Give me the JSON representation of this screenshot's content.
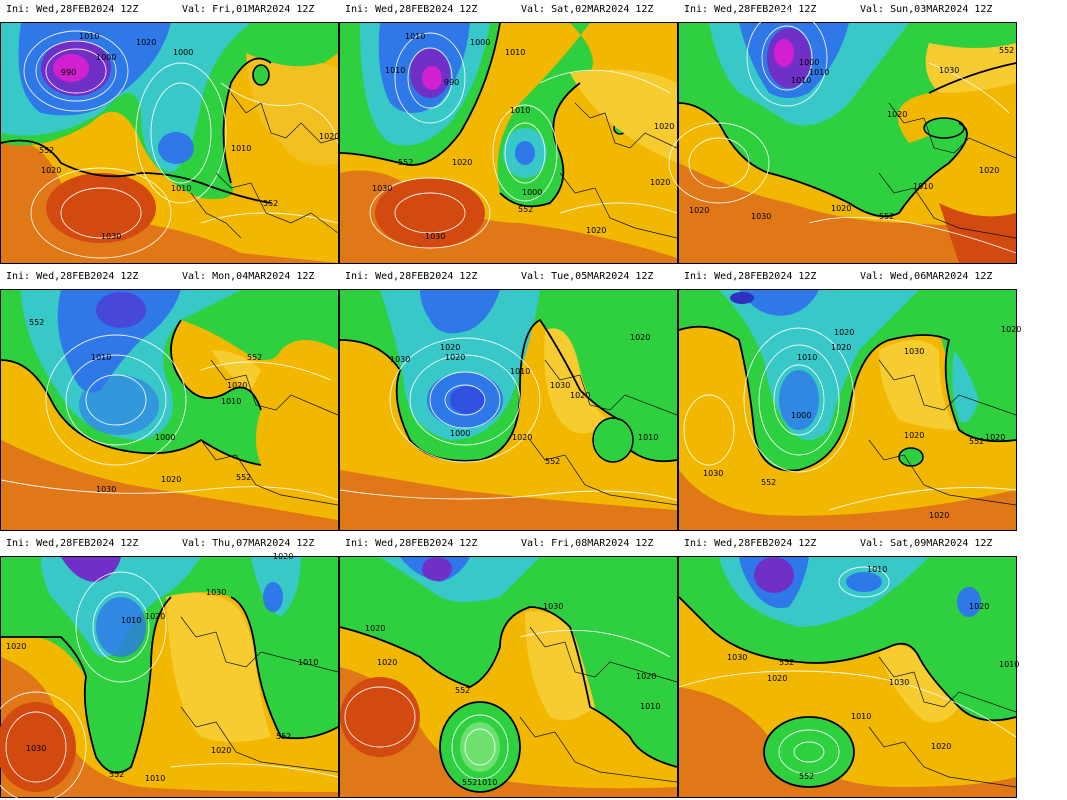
{
  "panels": [
    {
      "init": "Ini: Wed,28FEB2024 12Z",
      "valid": "Val: Fri,01MAR2024 12Z",
      "labels": [
        "1010",
        "1020",
        "1000",
        "1000",
        "990",
        "552",
        "1020",
        "1010",
        "1010",
        "1020",
        "1030",
        "552"
      ]
    },
    {
      "init": "Ini: Wed,28FEB2024 12Z",
      "valid": "Val: Sat,02MAR2024 12Z",
      "labels": [
        "1010",
        "990",
        "1000",
        "1010",
        "1010",
        "1010",
        "552",
        "1020",
        "1030",
        "1030",
        "1000",
        "552",
        "1020",
        "1020",
        "1020"
      ]
    },
    {
      "init": "Ini: Wed,28FEB2024 12Z",
      "valid": "Val: Sun,03MAR2024 12Z",
      "labels": [
        "552",
        "1030",
        "1000",
        "1010",
        "1010",
        "1020",
        "1020",
        "1030",
        "1010",
        "552",
        "1020",
        "1020"
      ]
    },
    {
      "init": "Ini: Wed,28FEB2024 12Z",
      "valid": "Val: Mon,04MAR2024 12Z",
      "labels": [
        "552",
        "1010",
        "552",
        "1020",
        "1010",
        "1000",
        "1020",
        "552",
        "1030"
      ]
    },
    {
      "init": "Ini: Wed,28FEB2024 12Z",
      "valid": "Val: Tue,05MAR2024 12Z",
      "labels": [
        "1020",
        "1030",
        "1020",
        "1010",
        "1030",
        "1020",
        "1000",
        "1020",
        "552",
        "1010",
        "1020"
      ]
    },
    {
      "init": "Ini: Wed,28FEB2024 12Z",
      "valid": "Val: Wed,06MAR2024 12Z",
      "labels": [
        "1020",
        "1020",
        "1010",
        "1030",
        "1000",
        "1020",
        "552",
        "1030",
        "552",
        "1020",
        "1020",
        "1020"
      ]
    },
    {
      "init": "Ini: Wed,28FEB2024 12Z",
      "valid": "Val: Thu,07MAR2024 12Z",
      "labels": [
        "1020",
        "1030",
        "1010",
        "1020",
        "1020",
        "1010",
        "1030",
        "552",
        "1010",
        "1020",
        "552"
      ]
    },
    {
      "init": "Ini: Wed,28FEB2024 12Z",
      "valid": "Val: Fri,08MAR2024 12Z",
      "labels": [
        "1030",
        "1020",
        "1020",
        "552",
        "1020",
        "1010",
        "552",
        "1010"
      ]
    },
    {
      "init": "Ini: Wed,28FEB2024 12Z",
      "valid": "Val: Sat,09MAR2024 12Z",
      "labels": [
        "1010",
        "1020",
        "1030",
        "552",
        "1020",
        "1010",
        "1030",
        "1010",
        "1020",
        "552"
      ]
    }
  ]
}
